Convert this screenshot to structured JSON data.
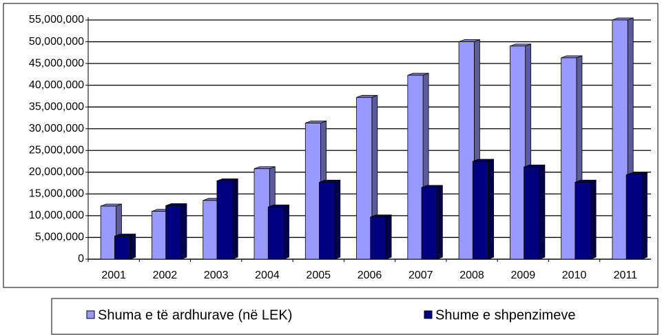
{
  "chart_data": {
    "type": "bar3d",
    "categories": [
      "2001",
      "2002",
      "2003",
      "2004",
      "2005",
      "2006",
      "2007",
      "2008",
      "2009",
      "2010",
      "2011"
    ],
    "series": [
      {
        "name": "Shuma e të ardhurave (në LEK)",
        "color": "#9999ff",
        "values": [
          12200000,
          11000000,
          13500000,
          20800000,
          31300000,
          37200000,
          42300000,
          50000000,
          49000000,
          46300000,
          55000000
        ]
      },
      {
        "name": "Shume e shpenzimeve",
        "color": "#000080",
        "values": [
          5300000,
          12300000,
          18000000,
          12000000,
          17700000,
          9700000,
          16500000,
          22500000,
          21200000,
          17700000,
          19400000
        ]
      }
    ],
    "ylim": [
      0,
      55000000
    ],
    "yticks": [
      0,
      {
        "value": 5000000,
        "label": "5,000,000"
      },
      {
        "value": 10000000,
        "label": "10,000,000"
      },
      {
        "value": 15000000,
        "label": "15,000,000"
      },
      {
        "value": 20000000,
        "label": "20,000,000"
      },
      {
        "value": 25000000,
        "label": "25,000,000"
      },
      {
        "value": 30000000,
        "label": "30,000,000"
      },
      {
        "value": 35000000,
        "label": "35,000,000"
      },
      {
        "value": 40000000,
        "label": "40,000,000"
      },
      {
        "value": 45000000,
        "label": "45,000,000"
      },
      {
        "value": 50000000,
        "label": "50,000,000"
      },
      {
        "value": 55000000,
        "label": "55,000,000"
      }
    ],
    "grid": true,
    "legend": "bottom"
  }
}
